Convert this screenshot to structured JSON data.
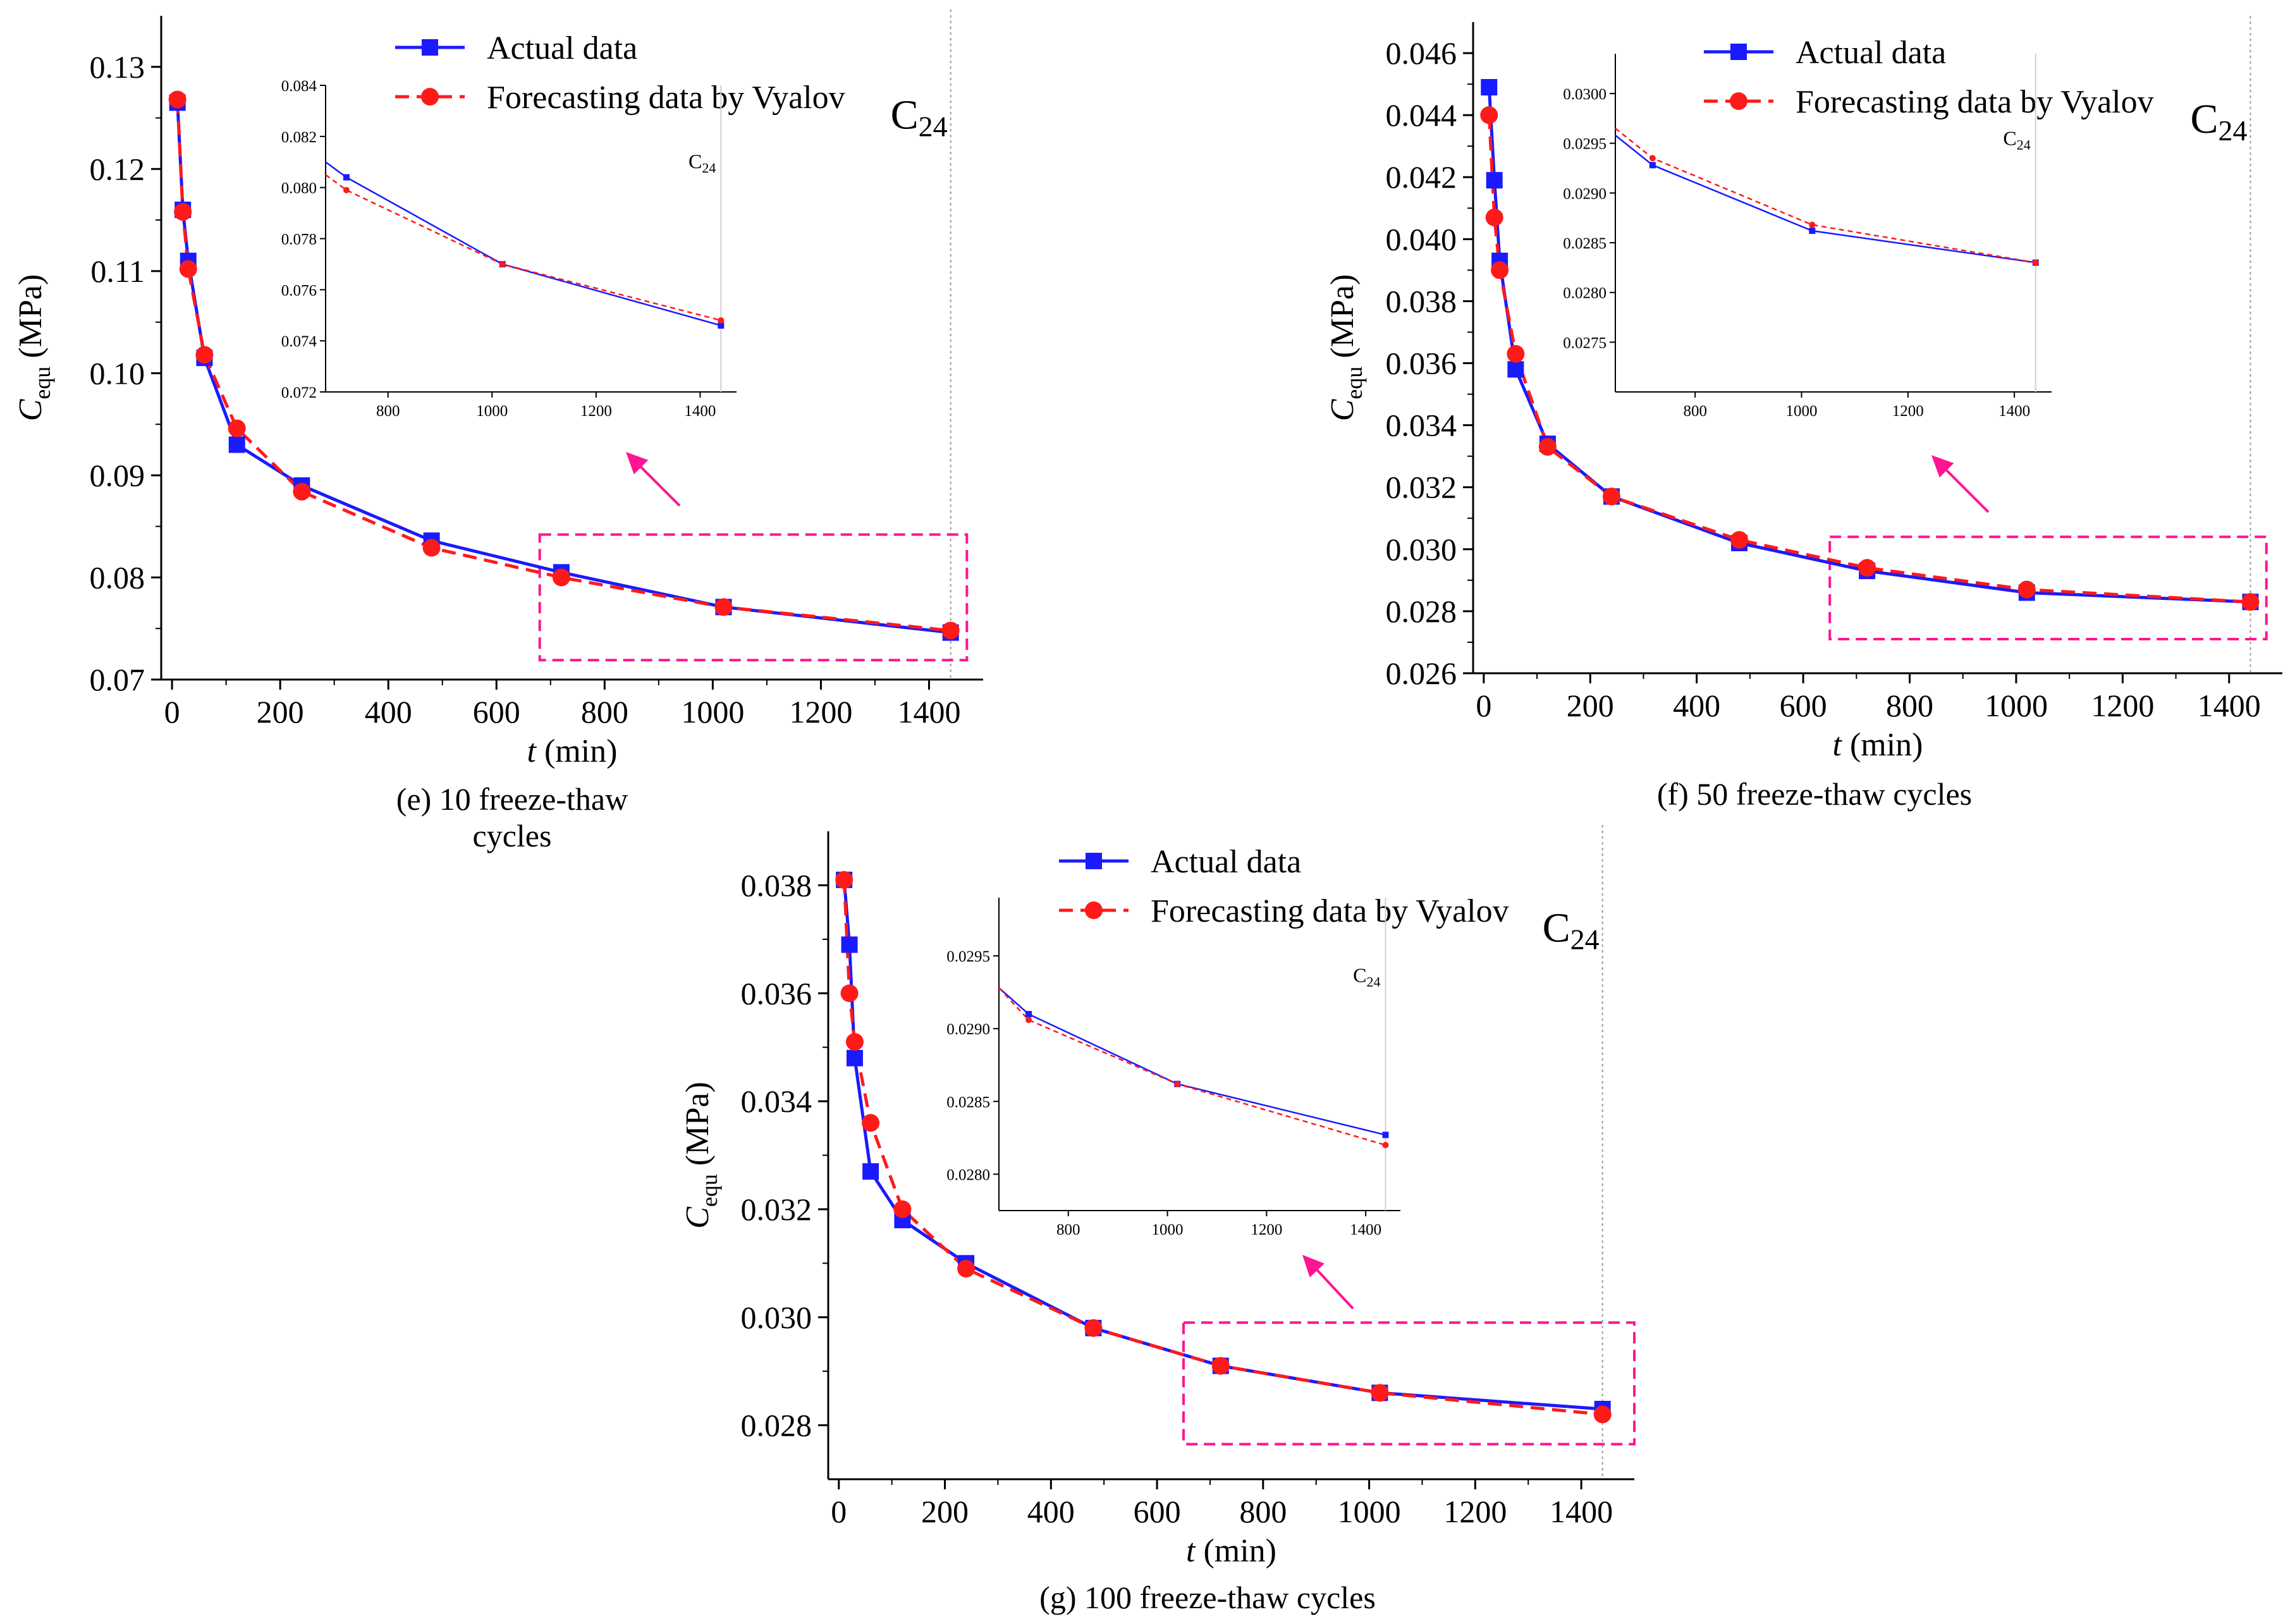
{
  "figure": {
    "colors": {
      "actual": "#1a1aff",
      "forecast": "#ff1a1a",
      "highlight": "#ff1493",
      "axis": "#000000"
    }
  },
  "chart_data": [
    {
      "id": "e",
      "type": "line",
      "caption": "(e) 10 freeze-thaw cycles",
      "xlabel_var": "t",
      "xlabel_unit": " (min)",
      "ylabel_var": "C",
      "ylabel_sub": "equ",
      "ylabel_unit": " (MPa)",
      "xlim": [
        -20,
        1500
      ],
      "ylim": [
        0.07,
        0.135
      ],
      "xticks": [
        0,
        200,
        400,
        600,
        800,
        1000,
        1200,
        1400
      ],
      "yticks": [
        0.07,
        0.08,
        0.09,
        0.1,
        0.11,
        0.12,
        0.13
      ],
      "ytick_labels": [
        "0.07",
        "0.08",
        "0.09",
        "0.10",
        "0.11",
        "0.12",
        "0.13"
      ],
      "marker_label": "C",
      "marker_sub": "24",
      "marker_x": 1440,
      "legend": [
        "Actual data",
        "Forecasting data by Vyalov"
      ],
      "series": [
        {
          "name": "Actual data",
          "x": [
            10,
            20,
            30,
            60,
            120,
            240,
            480,
            720,
            1020,
            1440
          ],
          "values": [
            0.1265,
            0.116,
            0.111,
            0.1015,
            0.093,
            0.089,
            0.0836,
            0.0805,
            0.0771,
            0.0746
          ]
        },
        {
          "name": "Forecasting data by Vyalov",
          "x": [
            10,
            20,
            30,
            60,
            120,
            240,
            480,
            720,
            1020,
            1440
          ],
          "values": [
            0.1268,
            0.1158,
            0.1102,
            0.1018,
            0.0946,
            0.0884,
            0.0829,
            0.08,
            0.0771,
            0.0748
          ]
        }
      ],
      "inset": {
        "xlim": [
          680,
          1470
        ],
        "ylim": [
          0.072,
          0.084
        ],
        "xticks": [
          800,
          1000,
          1200,
          1400
        ],
        "yticks": [
          0.072,
          0.074,
          0.076,
          0.078,
          0.08,
          0.082,
          0.084
        ],
        "ytick_labels": [
          "0.072",
          "0.074",
          "0.076",
          "0.078",
          "0.080",
          "0.082",
          "0.084"
        ],
        "actual_x": [
          680,
          720,
          1020,
          1440
        ],
        "actual": [
          0.081,
          0.0804,
          0.077,
          0.0746
        ],
        "forecast_x": [
          680,
          720,
          1020,
          1440
        ],
        "forecast": [
          0.0805,
          0.0799,
          0.077,
          0.0748
        ]
      }
    },
    {
      "id": "f",
      "type": "line",
      "caption": "(f) 50 freeze-thaw cycles",
      "xlabel_var": "t",
      "xlabel_unit": " (min)",
      "ylabel_var": "C",
      "ylabel_sub": "equ",
      "ylabel_unit": " (MPa)",
      "xlim": [
        -20,
        1500
      ],
      "ylim": [
        0.026,
        0.047
      ],
      "xticks": [
        0,
        200,
        400,
        600,
        800,
        1000,
        1200,
        1400
      ],
      "yticks": [
        0.026,
        0.028,
        0.03,
        0.032,
        0.034,
        0.036,
        0.038,
        0.04,
        0.042,
        0.044,
        0.046
      ],
      "ytick_labels": [
        "0.026",
        "0.028",
        "0.030",
        "0.032",
        "0.034",
        "0.036",
        "0.038",
        "0.040",
        "0.042",
        "0.044",
        "0.046"
      ],
      "marker_label": "C",
      "marker_sub": "24",
      "marker_x": 1440,
      "legend": [
        "Actual data",
        "Forecasting data by Vyalov"
      ],
      "series": [
        {
          "name": "Actual data",
          "x": [
            10,
            20,
            30,
            60,
            120,
            240,
            480,
            720,
            1020,
            1440
          ],
          "values": [
            0.0449,
            0.0419,
            0.0393,
            0.0358,
            0.0334,
            0.0317,
            0.0302,
            0.0293,
            0.0286,
            0.0283
          ]
        },
        {
          "name": "Forecasting data by Vyalov",
          "x": [
            10,
            20,
            30,
            60,
            120,
            240,
            480,
            720,
            1020,
            1440
          ],
          "values": [
            0.044,
            0.0407,
            0.039,
            0.0363,
            0.0333,
            0.0317,
            0.0303,
            0.0294,
            0.0287,
            0.0283
          ]
        }
      ],
      "inset": {
        "xlim": [
          650,
          1470
        ],
        "ylim": [
          0.027,
          0.0304
        ],
        "xticks": [
          800,
          1000,
          1200,
          1400
        ],
        "yticks": [
          0.0275,
          0.028,
          0.0285,
          0.029,
          0.0295,
          0.03
        ],
        "ytick_labels": [
          "0.0275",
          "0.0280",
          "0.0285",
          "0.0290",
          "0.0295",
          "0.0300"
        ],
        "actual_x": [
          650,
          720,
          1020,
          1440
        ],
        "actual": [
          0.02958,
          0.02928,
          0.02862,
          0.0283
        ],
        "forecast_x": [
          650,
          720,
          1020,
          1440
        ],
        "forecast": [
          0.02965,
          0.02935,
          0.02868,
          0.0283
        ]
      }
    },
    {
      "id": "g",
      "type": "line",
      "caption": "(g) 100 freeze-thaw cycles",
      "xlabel_var": "t",
      "xlabel_unit": " (min)",
      "ylabel_var": "C",
      "ylabel_sub": "equ",
      "ylabel_unit": " (MPa)",
      "xlim": [
        -20,
        1500
      ],
      "ylim": [
        0.027,
        0.039
      ],
      "xticks": [
        0,
        200,
        400,
        600,
        800,
        1000,
        1200,
        1400
      ],
      "yticks": [
        0.028,
        0.03,
        0.032,
        0.034,
        0.036,
        0.038
      ],
      "ytick_labels": [
        "0.028",
        "0.030",
        "0.032",
        "0.034",
        "0.036",
        "0.038"
      ],
      "marker_label": "C",
      "marker_sub": "24",
      "marker_x": 1440,
      "legend": [
        "Actual data",
        "Forecasting data by Vyalov"
      ],
      "series": [
        {
          "name": "Actual data",
          "x": [
            10,
            20,
            30,
            60,
            120,
            240,
            480,
            720,
            1020,
            1440
          ],
          "values": [
            0.0381,
            0.0369,
            0.0348,
            0.0327,
            0.0318,
            0.031,
            0.0298,
            0.0291,
            0.0286,
            0.0283
          ]
        },
        {
          "name": "Forecasting data by Vyalov",
          "x": [
            10,
            20,
            30,
            60,
            120,
            240,
            480,
            720,
            1020,
            1440
          ],
          "values": [
            0.0381,
            0.036,
            0.0351,
            0.0336,
            0.032,
            0.0309,
            0.0298,
            0.0291,
            0.0286,
            0.0282
          ]
        }
      ],
      "inset": {
        "xlim": [
          660,
          1470
        ],
        "ylim": [
          0.02775,
          0.0299
        ],
        "xticks": [
          800,
          1000,
          1200,
          1400
        ],
        "yticks": [
          0.028,
          0.0285,
          0.029,
          0.0295
        ],
        "ytick_labels": [
          "0.0280",
          "0.0285",
          "0.0290",
          "0.0295"
        ],
        "actual_x": [
          660,
          720,
          1020,
          1440
        ],
        "actual": [
          0.02928,
          0.0291,
          0.02862,
          0.02827
        ],
        "forecast_x": [
          660,
          720,
          1020,
          1440
        ],
        "forecast": [
          0.02928,
          0.02906,
          0.02862,
          0.0282
        ]
      }
    }
  ]
}
